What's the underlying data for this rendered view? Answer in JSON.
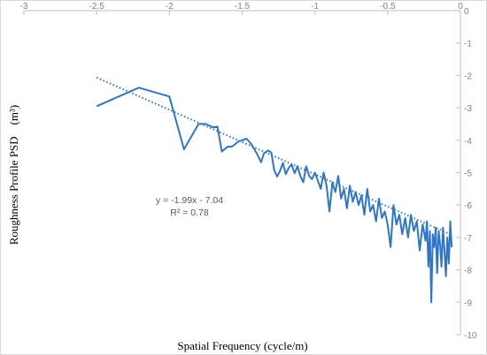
{
  "chart_data": {
    "type": "line",
    "xlabel": "Spatial Frequency (cycle/m)",
    "ylabel": "Roughness Profile PSD　(m³)",
    "xlim": [
      -3,
      0
    ],
    "ylim": [
      -10,
      0
    ],
    "x_ticks": [
      "-3",
      "-2.5",
      "-2",
      "-1.5",
      "-1",
      "-0.5",
      "0"
    ],
    "y_ticks": [
      "0",
      "-1",
      "-2",
      "-3",
      "-4",
      "-5",
      "-6",
      "-7",
      "-8",
      "-9",
      "-10"
    ],
    "grid": false,
    "series": [
      {
        "name": "",
        "color": "#2f75c8",
        "x": [
          -2.5,
          -2.21,
          -2.0,
          -1.9,
          -1.8,
          -1.75,
          -1.7,
          -1.67,
          -1.64,
          -1.6,
          -1.57,
          -1.53,
          -1.5,
          -1.47,
          -1.44,
          -1.4,
          -1.37,
          -1.35,
          -1.32,
          -1.3,
          -1.28,
          -1.26,
          -1.24,
          -1.22,
          -1.2,
          -1.18,
          -1.16,
          -1.14,
          -1.12,
          -1.1,
          -1.08,
          -1.06,
          -1.04,
          -1.02,
          -1.0,
          -0.98,
          -0.96,
          -0.94,
          -0.92,
          -0.9,
          -0.88,
          -0.86,
          -0.84,
          -0.82,
          -0.8,
          -0.78,
          -0.76,
          -0.74,
          -0.72,
          -0.7,
          -0.68,
          -0.66,
          -0.64,
          -0.62,
          -0.6,
          -0.58,
          -0.56,
          -0.54,
          -0.52,
          -0.5,
          -0.48,
          -0.46,
          -0.44,
          -0.42,
          -0.4,
          -0.38,
          -0.36,
          -0.34,
          -0.32,
          -0.3,
          -0.28,
          -0.26,
          -0.24,
          -0.23,
          -0.22,
          -0.21,
          -0.2,
          -0.19,
          -0.18,
          -0.17,
          -0.16,
          -0.15,
          -0.14,
          -0.13,
          -0.12,
          -0.11,
          -0.1,
          -0.09,
          -0.08,
          -0.07,
          -0.06
        ],
        "y": [
          -2.95,
          -2.38,
          -2.65,
          -4.28,
          -3.5,
          -3.5,
          -3.6,
          -3.58,
          -4.35,
          -4.2,
          -4.2,
          -4.05,
          -4.0,
          -3.95,
          -4.1,
          -4.4,
          -4.68,
          -4.4,
          -4.32,
          -4.38,
          -4.92,
          -5.12,
          -4.95,
          -4.7,
          -5.05,
          -4.85,
          -4.75,
          -5.02,
          -4.8,
          -5.1,
          -5.3,
          -4.8,
          -5.1,
          -5.2,
          -5.0,
          -5.25,
          -5.5,
          -5.0,
          -5.4,
          -6.2,
          -5.3,
          -5.6,
          -5.1,
          -5.8,
          -5.5,
          -6.1,
          -5.4,
          -5.9,
          -5.6,
          -6.0,
          -5.7,
          -6.3,
          -5.5,
          -6.2,
          -6.0,
          -6.5,
          -5.8,
          -6.4,
          -6.2,
          -6.6,
          -7.3,
          -6.0,
          -6.6,
          -6.3,
          -6.9,
          -6.4,
          -7.0,
          -6.3,
          -6.8,
          -6.5,
          -7.4,
          -6.6,
          -7.1,
          -6.5,
          -7.9,
          -6.8,
          -9.0,
          -6.9,
          -7.3,
          -6.7,
          -8.1,
          -6.8,
          -7.2,
          -7.9,
          -6.7,
          -7.4,
          -8.2,
          -7.0,
          -7.8,
          -6.5,
          -7.3
        ]
      }
    ],
    "trendline": {
      "color": "#2f75c8",
      "slope": -1.99,
      "intercept": -7.04,
      "x_range": [
        -2.5,
        -0.07
      ],
      "equation_text": "y = -1.99x - 7.04",
      "r2_text": "R² = 0.78"
    }
  }
}
